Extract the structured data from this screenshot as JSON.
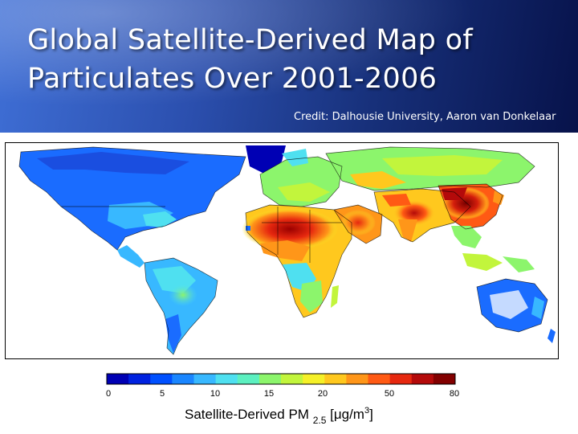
{
  "slide": {
    "title_line1": "Global Satellite-Derived Map of",
    "title_line2": "Particulates Over 2001-2006",
    "credit": "Credit: Dalhousie University, Aaron van Donkelaar"
  },
  "colorbar": {
    "ticks": [
      "0",
      "5",
      "10",
      "15",
      "20",
      "50",
      "80"
    ],
    "colors": [
      "#0000b4",
      "#0022e0",
      "#0050ff",
      "#1a86ff",
      "#38b8ff",
      "#4fe0f0",
      "#5cf0c0",
      "#8cf56c",
      "#c2f53c",
      "#f5f028",
      "#ffc81e",
      "#ff9619",
      "#ff5a14",
      "#e6280f",
      "#b40a0a",
      "#820000"
    ],
    "caption_main": "Satellite-Derived PM",
    "caption_sub": "2.5",
    "caption_unit_pre": "[μg/m",
    "caption_unit_sup": "3",
    "caption_unit_post": "]"
  },
  "map": {
    "ocean_color": "#ffffff",
    "low_color": "#1a5cff",
    "mid_color": "#3fd0e8",
    "high_color": "#ff5a14",
    "max_color": "#a00000"
  }
}
